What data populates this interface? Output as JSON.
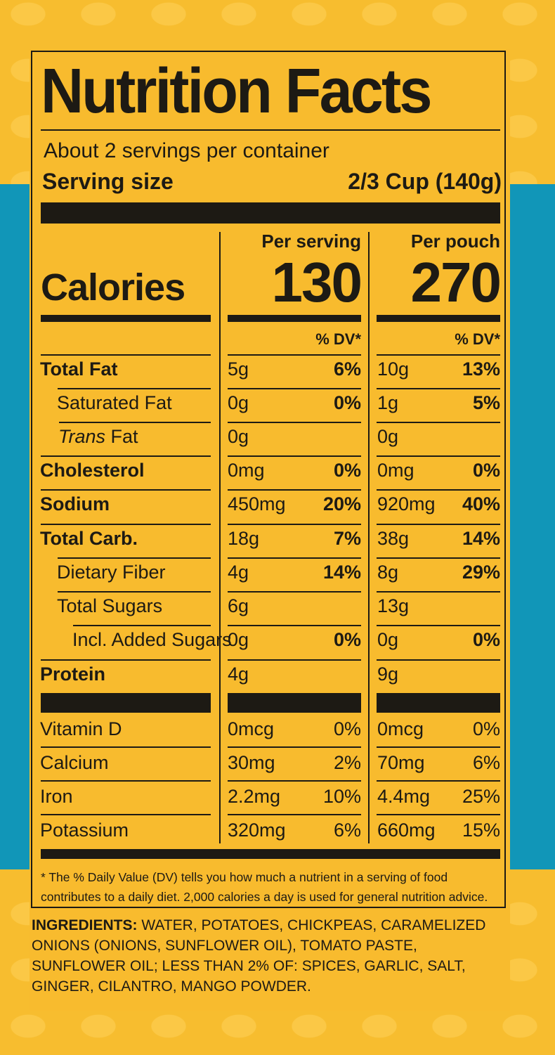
{
  "label": {
    "title": "Nutrition Facts",
    "servings_per_container": "About 2 servings per container",
    "serving_size_label": "Serving size",
    "serving_size_value": "2/3 Cup (140g)",
    "col1_header": "Per serving",
    "col2_header": "Per pouch",
    "calories_label": "Calories",
    "calories_serving": "130",
    "calories_pouch": "270",
    "dv_header": "% DV*",
    "rows": [
      {
        "label": "Total Fat",
        "s_amt": "5g",
        "s_dv": "6%",
        "p_amt": "10g",
        "p_dv": "13%"
      },
      {
        "label": "Saturated Fat",
        "s_amt": "0g",
        "s_dv": "0%",
        "p_amt": "1g",
        "p_dv": "5%"
      },
      {
        "label": "Trans",
        "label_suffix": " Fat",
        "s_amt": "0g",
        "s_dv": "",
        "p_amt": "0g",
        "p_dv": ""
      },
      {
        "label": "Cholesterol",
        "s_amt": "0mg",
        "s_dv": "0%",
        "p_amt": "0mg",
        "p_dv": "0%"
      },
      {
        "label": "Sodium",
        "s_amt": "450mg",
        "s_dv": "20%",
        "p_amt": "920mg",
        "p_dv": "40%"
      },
      {
        "label": "Total Carb.",
        "s_amt": "18g",
        "s_dv": "7%",
        "p_amt": "38g",
        "p_dv": "14%"
      },
      {
        "label": "Dietary Fiber",
        "s_amt": "4g",
        "s_dv": "14%",
        "p_amt": "8g",
        "p_dv": "29%"
      },
      {
        "label": "Total Sugars",
        "s_amt": "6g",
        "s_dv": "",
        "p_amt": "13g",
        "p_dv": ""
      },
      {
        "label": "Incl. Added Sugars",
        "s_amt": "0g",
        "s_dv": "0%",
        "p_amt": "0g",
        "p_dv": "0%"
      },
      {
        "label": "Protein",
        "s_amt": "4g",
        "s_dv": "",
        "p_amt": "9g",
        "p_dv": ""
      }
    ],
    "vitamins": [
      {
        "label": "Vitamin D",
        "s_amt": "0mcg",
        "s_dv": "0%",
        "p_amt": "0mcg",
        "p_dv": "0%"
      },
      {
        "label": "Calcium",
        "s_amt": "30mg",
        "s_dv": "2%",
        "p_amt": "70mg",
        "p_dv": "6%"
      },
      {
        "label": "Iron",
        "s_amt": "2.2mg",
        "s_dv": "10%",
        "p_amt": "4.4mg",
        "p_dv": "25%"
      },
      {
        "label": "Potassium",
        "s_amt": "320mg",
        "s_dv": "6%",
        "p_amt": "660mg",
        "p_dv": "15%"
      }
    ],
    "footnote_star": "*",
    "footnote": "The % Daily Value (DV) tells you how much a nutrient in a serving of food contributes to a daily diet. 2,000 calories a day is used for general nutrition advice."
  },
  "ingredients": {
    "heading": "INGREDIENTS:",
    "text": " WATER, POTATOES, CHICKPEAS, CARAMELIZED ONIONS (ONIONS, SUNFLOWER OIL), TOMATO PASTE, SUNFLOWER OIL; LESS THAN 2% OF: SPICES, GARLIC, SALT, GINGER, CILANTRO, MANGO POWDER."
  },
  "colors": {
    "background": "#f7bd2f",
    "accent_blue": "#1196b8",
    "ink": "#1d1a14"
  }
}
